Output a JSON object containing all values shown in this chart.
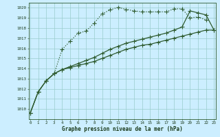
{
  "title": "Graphe pression niveau de la mer (hPa)",
  "bg_color": "#cceeff",
  "grid_color": "#99cccc",
  "line_color": "#2d5a2d",
  "x_min": 0,
  "x_max": 23,
  "y_min": 1009.0,
  "y_max": 1020.5,
  "yticks": [
    1010,
    1011,
    1012,
    1013,
    1014,
    1015,
    1016,
    1017,
    1018,
    1019,
    1020
  ],
  "xticks": [
    0,
    1,
    2,
    3,
    4,
    5,
    6,
    7,
    8,
    9,
    10,
    11,
    12,
    13,
    14,
    15,
    16,
    17,
    18,
    19,
    20,
    21,
    22,
    23
  ],
  "series1_x": [
    0,
    1,
    2,
    3,
    4,
    5,
    6,
    7,
    8,
    9,
    10,
    11,
    12,
    13,
    14,
    15,
    16,
    17,
    18,
    19,
    20,
    21,
    22
  ],
  "series1_y": [
    1009.6,
    1011.7,
    1012.8,
    1013.5,
    1015.9,
    1016.7,
    1017.5,
    1017.7,
    1018.5,
    1019.4,
    1019.8,
    1020.05,
    1019.85,
    1019.7,
    1019.6,
    1019.6,
    1019.6,
    1019.6,
    1019.9,
    1019.9,
    1019.0,
    1019.1,
    1018.8
  ],
  "series2_x": [
    0,
    1,
    2,
    3,
    4,
    5,
    6,
    7,
    8,
    9,
    10,
    11,
    12,
    13,
    14,
    15,
    16,
    17,
    18,
    19,
    20,
    21,
    22,
    23
  ],
  "series2_y": [
    1009.6,
    1011.7,
    1012.8,
    1013.5,
    1013.9,
    1014.2,
    1014.5,
    1014.8,
    1015.1,
    1015.5,
    1015.9,
    1016.2,
    1016.5,
    1016.7,
    1016.9,
    1017.1,
    1017.3,
    1017.5,
    1017.8,
    1018.1,
    1019.7,
    1019.5,
    1019.3,
    1017.8
  ],
  "series3_x": [
    0,
    1,
    2,
    3,
    4,
    5,
    6,
    7,
    8,
    9,
    10,
    11,
    12,
    13,
    14,
    15,
    16,
    17,
    18,
    19,
    20,
    21,
    22,
    23
  ],
  "series3_y": [
    1009.6,
    1011.7,
    1012.8,
    1013.5,
    1013.9,
    1014.1,
    1014.3,
    1014.5,
    1014.7,
    1015.0,
    1015.3,
    1015.6,
    1015.9,
    1016.1,
    1016.3,
    1016.4,
    1016.6,
    1016.8,
    1017.0,
    1017.2,
    1017.4,
    1017.6,
    1017.8,
    1017.8
  ]
}
